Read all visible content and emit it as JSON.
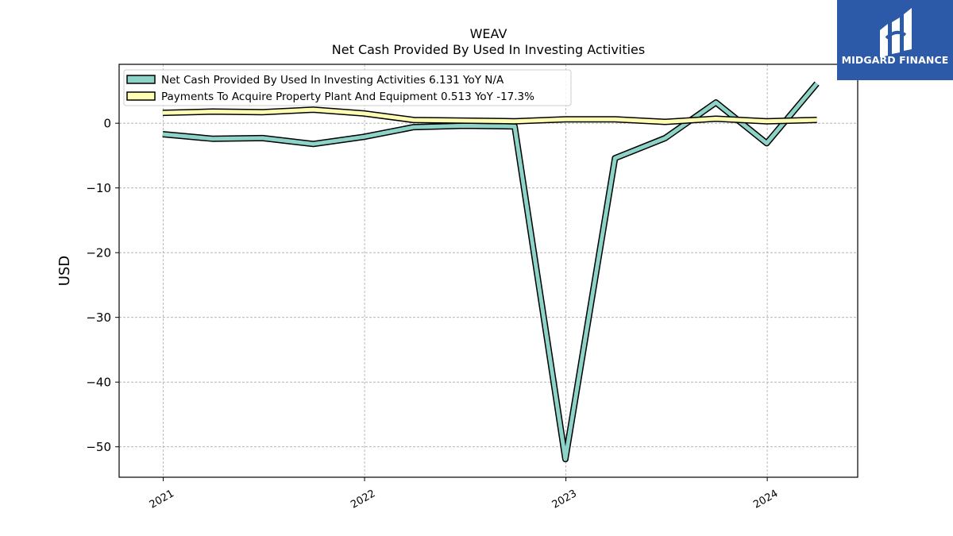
{
  "brand": {
    "name": "MIDGARD FINANCE",
    "color": "#2c5aa8"
  },
  "chart_data": {
    "type": "line",
    "title": "WEAV",
    "subtitle": "Net Cash Provided By Used In Investing Activities",
    "ylabel": "USD",
    "xlabel": "",
    "ylim": [
      -54.7,
      9.1
    ],
    "xlim": [
      "2020-10-13",
      "2024-06-13"
    ],
    "yticks": [
      0,
      -10,
      -20,
      -30,
      -40,
      -50
    ],
    "ytick_labels": [
      "0",
      "−10",
      "−20",
      "−30",
      "−40",
      "−50"
    ],
    "xticks": [
      "2021-01-01",
      "2022-01-01",
      "2023-01-01",
      "2024-01-01"
    ],
    "xtick_labels": [
      "2021",
      "2022",
      "2023",
      "2024"
    ],
    "grid": true,
    "legend_position": "top-left",
    "series": [
      {
        "name": "Net Cash Provided By Used In Investing Activities",
        "legend_label": "Net Cash Provided By Used In Investing Activities  6.131 YoY N/A",
        "color": "#8dd3c7",
        "x": [
          "2020-12-31",
          "2021-03-31",
          "2021-06-30",
          "2021-09-30",
          "2021-12-31",
          "2022-03-31",
          "2022-06-30",
          "2022-09-30",
          "2022-12-31",
          "2023-03-31",
          "2023-06-30",
          "2023-09-30",
          "2023-12-31",
          "2024-03-31"
        ],
        "values": [
          -1.7,
          -2.4,
          -2.3,
          -3.2,
          -2.1,
          -0.6,
          -0.4,
          -0.5,
          -51.9,
          -5.4,
          -2.3,
          3.2,
          -3.1,
          6.131
        ]
      },
      {
        "name": "Payments To Acquire Property Plant And Equipment",
        "legend_label": "Payments To Acquire Property Plant And Equipment  0.513 YoY -17.3%",
        "color": "#ffffb3",
        "x": [
          "2020-12-31",
          "2021-03-31",
          "2021-06-30",
          "2021-09-30",
          "2021-12-31",
          "2022-03-31",
          "2022-06-30",
          "2022-09-30",
          "2022-12-31",
          "2023-03-31",
          "2023-06-30",
          "2023-09-30",
          "2023-12-31",
          "2024-03-31"
        ],
        "values": [
          1.6,
          1.8,
          1.7,
          2.1,
          1.5,
          0.5,
          0.4,
          0.3,
          0.6,
          0.6,
          0.2,
          0.7,
          0.3,
          0.513
        ]
      }
    ]
  }
}
